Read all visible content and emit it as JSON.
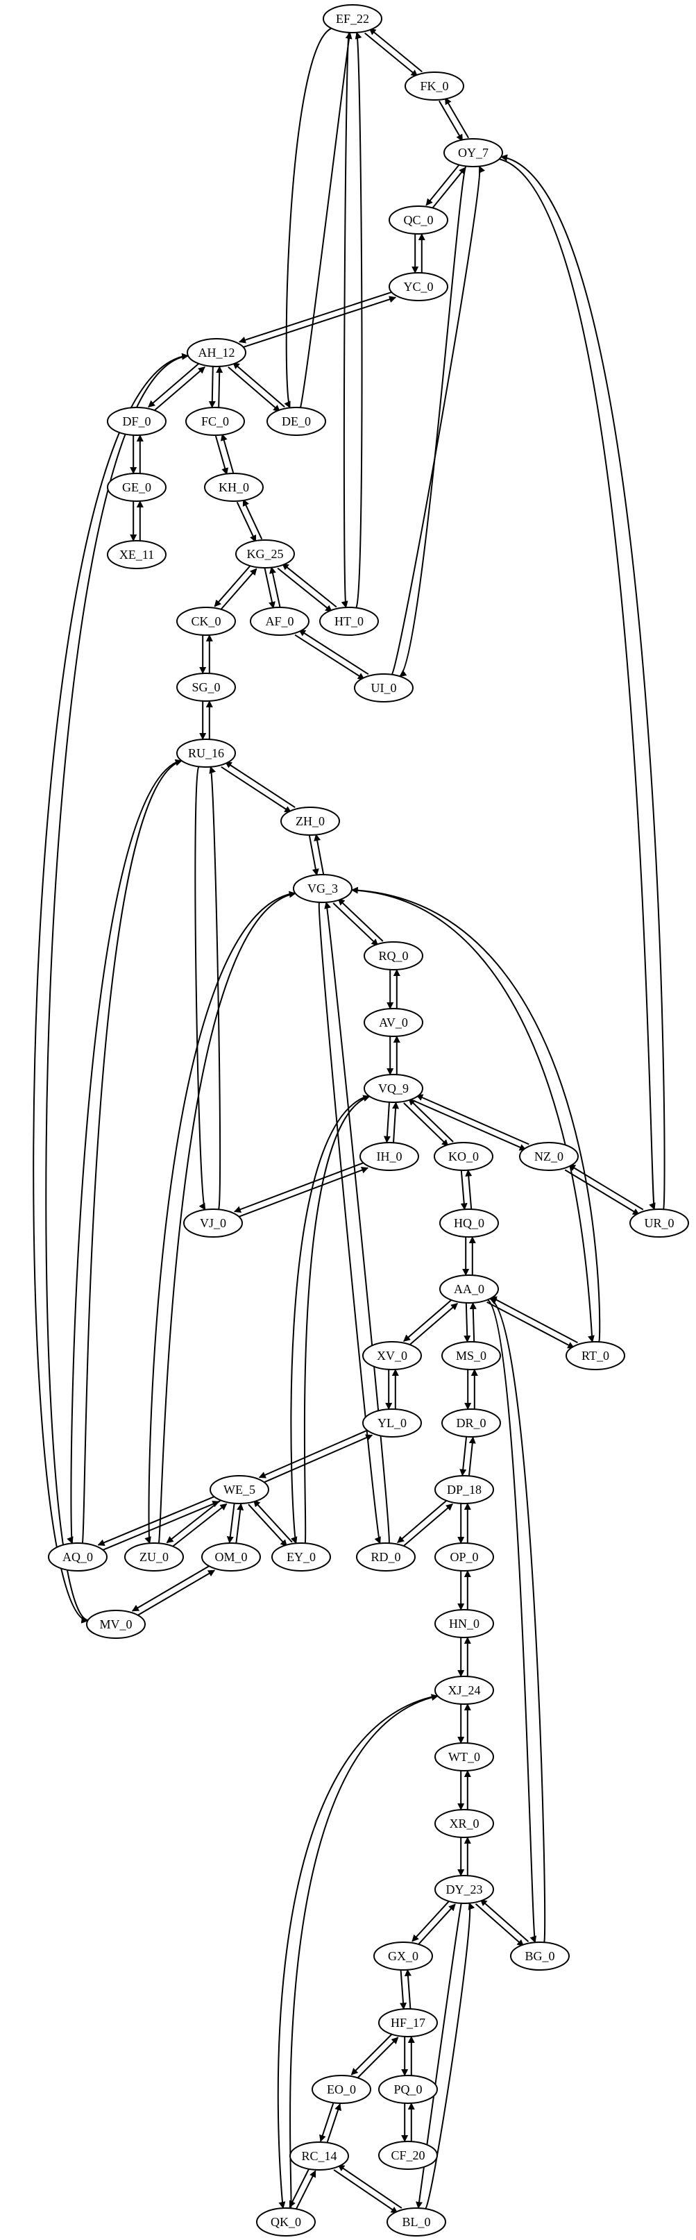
{
  "graph": {
    "nodes": [
      {
        "id": "EF_22",
        "label": "EF_22"
      },
      {
        "id": "FK_0",
        "label": "FK_0"
      },
      {
        "id": "OY_7",
        "label": "OY_7"
      },
      {
        "id": "QC_0",
        "label": "QC_0"
      },
      {
        "id": "YC_0",
        "label": "YC_0"
      },
      {
        "id": "AH_12",
        "label": "AH_12"
      },
      {
        "id": "DF_0",
        "label": "DF_0"
      },
      {
        "id": "FC_0",
        "label": "FC_0"
      },
      {
        "id": "DE_0",
        "label": "DE_0"
      },
      {
        "id": "GE_0",
        "label": "GE_0"
      },
      {
        "id": "KH_0",
        "label": "KH_0"
      },
      {
        "id": "XE_11",
        "label": "XE_11"
      },
      {
        "id": "KG_25",
        "label": "KG_25"
      },
      {
        "id": "CK_0",
        "label": "CK_0"
      },
      {
        "id": "AF_0",
        "label": "AF_0"
      },
      {
        "id": "HT_0",
        "label": "HT_0"
      },
      {
        "id": "UI_0",
        "label": "UI_0"
      },
      {
        "id": "SG_0",
        "label": "SG_0"
      },
      {
        "id": "RU_16",
        "label": "RU_16"
      },
      {
        "id": "ZH_0",
        "label": "ZH_0"
      },
      {
        "id": "VG_3",
        "label": "VG_3"
      },
      {
        "id": "RQ_0",
        "label": "RQ_0"
      },
      {
        "id": "AV_0",
        "label": "AV_0"
      },
      {
        "id": "VQ_9",
        "label": "VQ_9"
      },
      {
        "id": "IH_0",
        "label": "IH_0"
      },
      {
        "id": "KO_0",
        "label": "KO_0"
      },
      {
        "id": "NZ_0",
        "label": "NZ_0"
      },
      {
        "id": "VJ_0",
        "label": "VJ_0"
      },
      {
        "id": "HQ_0",
        "label": "HQ_0"
      },
      {
        "id": "UR_0",
        "label": "UR_0"
      },
      {
        "id": "AA_0",
        "label": "AA_0"
      },
      {
        "id": "XV_0",
        "label": "XV_0"
      },
      {
        "id": "MS_0",
        "label": "MS_0"
      },
      {
        "id": "RT_0",
        "label": "RT_0"
      },
      {
        "id": "YL_0",
        "label": "YL_0"
      },
      {
        "id": "DR_0",
        "label": "DR_0"
      },
      {
        "id": "WE_5",
        "label": "WE_5"
      },
      {
        "id": "DP_18",
        "label": "DP_18"
      },
      {
        "id": "AQ_0",
        "label": "AQ_0"
      },
      {
        "id": "ZU_0",
        "label": "ZU_0"
      },
      {
        "id": "OM_0",
        "label": "OM_0"
      },
      {
        "id": "EY_0",
        "label": "EY_0"
      },
      {
        "id": "RD_0",
        "label": "RD_0"
      },
      {
        "id": "OP_0",
        "label": "OP_0"
      },
      {
        "id": "MV_0",
        "label": "MV_0"
      },
      {
        "id": "HN_0",
        "label": "HN_0"
      },
      {
        "id": "XJ_24",
        "label": "XJ_24"
      },
      {
        "id": "WT_0",
        "label": "WT_0"
      },
      {
        "id": "XR_0",
        "label": "XR_0"
      },
      {
        "id": "DY_23",
        "label": "DY_23"
      },
      {
        "id": "GX_0",
        "label": "GX_0"
      },
      {
        "id": "BG_0",
        "label": "BG_0"
      },
      {
        "id": "HF_17",
        "label": "HF_17"
      },
      {
        "id": "EO_0",
        "label": "EO_0"
      },
      {
        "id": "PQ_0",
        "label": "PQ_0"
      },
      {
        "id": "RC_14",
        "label": "RC_14"
      },
      {
        "id": "CF_20",
        "label": "CF_20"
      },
      {
        "id": "QK_0",
        "label": "QK_0"
      },
      {
        "id": "BL_0",
        "label": "BL_0"
      }
    ],
    "edges": [
      [
        "EF_22",
        "FK_0"
      ],
      [
        "FK_0",
        "EF_22"
      ],
      [
        "FK_0",
        "OY_7"
      ],
      [
        "OY_7",
        "FK_0"
      ],
      [
        "OY_7",
        "QC_0"
      ],
      [
        "QC_0",
        "OY_7"
      ],
      [
        "QC_0",
        "YC_0"
      ],
      [
        "YC_0",
        "QC_0"
      ],
      [
        "YC_0",
        "AH_12"
      ],
      [
        "AH_12",
        "YC_0"
      ],
      [
        "AH_12",
        "DF_0"
      ],
      [
        "DF_0",
        "AH_12"
      ],
      [
        "AH_12",
        "FC_0"
      ],
      [
        "FC_0",
        "AH_12"
      ],
      [
        "AH_12",
        "DE_0"
      ],
      [
        "DE_0",
        "AH_12"
      ],
      [
        "EF_22",
        "DE_0"
      ],
      [
        "DE_0",
        "EF_22"
      ],
      [
        "EF_22",
        "HT_0"
      ],
      [
        "HT_0",
        "EF_22"
      ],
      [
        "DF_0",
        "GE_0"
      ],
      [
        "GE_0",
        "DF_0"
      ],
      [
        "GE_0",
        "XE_11"
      ],
      [
        "XE_11",
        "GE_0"
      ],
      [
        "FC_0",
        "KH_0"
      ],
      [
        "KH_0",
        "FC_0"
      ],
      [
        "KH_0",
        "KG_25"
      ],
      [
        "KG_25",
        "KH_0"
      ],
      [
        "KG_25",
        "CK_0"
      ],
      [
        "CK_0",
        "KG_25"
      ],
      [
        "KG_25",
        "AF_0"
      ],
      [
        "AF_0",
        "KG_25"
      ],
      [
        "KG_25",
        "HT_0"
      ],
      [
        "HT_0",
        "KG_25"
      ],
      [
        "AF_0",
        "UI_0"
      ],
      [
        "UI_0",
        "AF_0"
      ],
      [
        "OY_7",
        "UI_0"
      ],
      [
        "UI_0",
        "OY_7"
      ],
      [
        "OY_7",
        "UR_0"
      ],
      [
        "UR_0",
        "OY_7"
      ],
      [
        "CK_0",
        "SG_0"
      ],
      [
        "SG_0",
        "CK_0"
      ],
      [
        "SG_0",
        "RU_16"
      ],
      [
        "RU_16",
        "SG_0"
      ],
      [
        "RU_16",
        "ZH_0"
      ],
      [
        "ZH_0",
        "RU_16"
      ],
      [
        "ZH_0",
        "VG_3"
      ],
      [
        "VG_3",
        "ZH_0"
      ],
      [
        "RU_16",
        "VJ_0"
      ],
      [
        "VJ_0",
        "RU_16"
      ],
      [
        "RU_16",
        "AQ_0"
      ],
      [
        "AQ_0",
        "RU_16"
      ],
      [
        "AH_12",
        "MV_0"
      ],
      [
        "MV_0",
        "AH_12"
      ],
      [
        "VG_3",
        "RQ_0"
      ],
      [
        "RQ_0",
        "VG_3"
      ],
      [
        "RQ_0",
        "AV_0"
      ],
      [
        "AV_0",
        "RQ_0"
      ],
      [
        "AV_0",
        "VQ_9"
      ],
      [
        "VQ_9",
        "AV_0"
      ],
      [
        "VQ_9",
        "IH_0"
      ],
      [
        "IH_0",
        "VQ_9"
      ],
      [
        "VQ_9",
        "KO_0"
      ],
      [
        "KO_0",
        "VQ_9"
      ],
      [
        "VQ_9",
        "NZ_0"
      ],
      [
        "NZ_0",
        "VQ_9"
      ],
      [
        "NZ_0",
        "UR_0"
      ],
      [
        "UR_0",
        "NZ_0"
      ],
      [
        "IH_0",
        "VJ_0"
      ],
      [
        "VJ_0",
        "IH_0"
      ],
      [
        "KO_0",
        "HQ_0"
      ],
      [
        "HQ_0",
        "KO_0"
      ],
      [
        "HQ_0",
        "AA_0"
      ],
      [
        "AA_0",
        "HQ_0"
      ],
      [
        "VG_3",
        "RT_0"
      ],
      [
        "RT_0",
        "VG_3"
      ],
      [
        "VG_3",
        "ZU_0"
      ],
      [
        "ZU_0",
        "VG_3"
      ],
      [
        "VG_3",
        "RD_0"
      ],
      [
        "RD_0",
        "VG_3"
      ],
      [
        "VQ_9",
        "EY_0"
      ],
      [
        "EY_0",
        "VQ_9"
      ],
      [
        "AA_0",
        "XV_0"
      ],
      [
        "XV_0",
        "AA_0"
      ],
      [
        "AA_0",
        "MS_0"
      ],
      [
        "MS_0",
        "AA_0"
      ],
      [
        "AA_0",
        "RT_0"
      ],
      [
        "RT_0",
        "AA_0"
      ],
      [
        "AA_0",
        "BG_0"
      ],
      [
        "BG_0",
        "AA_0"
      ],
      [
        "XV_0",
        "YL_0"
      ],
      [
        "YL_0",
        "XV_0"
      ],
      [
        "MS_0",
        "DR_0"
      ],
      [
        "DR_0",
        "MS_0"
      ],
      [
        "YL_0",
        "WE_5"
      ],
      [
        "WE_5",
        "YL_0"
      ],
      [
        "DR_0",
        "DP_18"
      ],
      [
        "DP_18",
        "DR_0"
      ],
      [
        "WE_5",
        "AQ_0"
      ],
      [
        "AQ_0",
        "WE_5"
      ],
      [
        "WE_5",
        "ZU_0"
      ],
      [
        "ZU_0",
        "WE_5"
      ],
      [
        "WE_5",
        "OM_0"
      ],
      [
        "OM_0",
        "WE_5"
      ],
      [
        "WE_5",
        "EY_0"
      ],
      [
        "EY_0",
        "WE_5"
      ],
      [
        "OM_0",
        "MV_0"
      ],
      [
        "MV_0",
        "OM_0"
      ],
      [
        "DP_18",
        "RD_0"
      ],
      [
        "RD_0",
        "DP_18"
      ],
      [
        "DP_18",
        "OP_0"
      ],
      [
        "OP_0",
        "DP_18"
      ],
      [
        "OP_0",
        "HN_0"
      ],
      [
        "HN_0",
        "OP_0"
      ],
      [
        "HN_0",
        "XJ_24"
      ],
      [
        "XJ_24",
        "HN_0"
      ],
      [
        "XJ_24",
        "WT_0"
      ],
      [
        "WT_0",
        "XJ_24"
      ],
      [
        "XJ_24",
        "QK_0"
      ],
      [
        "QK_0",
        "XJ_24"
      ],
      [
        "WT_0",
        "XR_0"
      ],
      [
        "XR_0",
        "WT_0"
      ],
      [
        "XR_0",
        "DY_23"
      ],
      [
        "DY_23",
        "XR_0"
      ],
      [
        "DY_23",
        "GX_0"
      ],
      [
        "GX_0",
        "DY_23"
      ],
      [
        "DY_23",
        "BG_0"
      ],
      [
        "BG_0",
        "DY_23"
      ],
      [
        "DY_23",
        "BL_0"
      ],
      [
        "BL_0",
        "DY_23"
      ],
      [
        "GX_0",
        "HF_17"
      ],
      [
        "HF_17",
        "GX_0"
      ],
      [
        "HF_17",
        "EO_0"
      ],
      [
        "EO_0",
        "HF_17"
      ],
      [
        "HF_17",
        "PQ_0"
      ],
      [
        "PQ_0",
        "HF_17"
      ],
      [
        "PQ_0",
        "CF_20"
      ],
      [
        "CF_20",
        "PQ_0"
      ],
      [
        "EO_0",
        "RC_14"
      ],
      [
        "RC_14",
        "EO_0"
      ],
      [
        "RC_14",
        "QK_0"
      ],
      [
        "QK_0",
        "RC_14"
      ],
      [
        "RC_14",
        "BL_0"
      ],
      [
        "BL_0",
        "RC_14"
      ]
    ]
  }
}
